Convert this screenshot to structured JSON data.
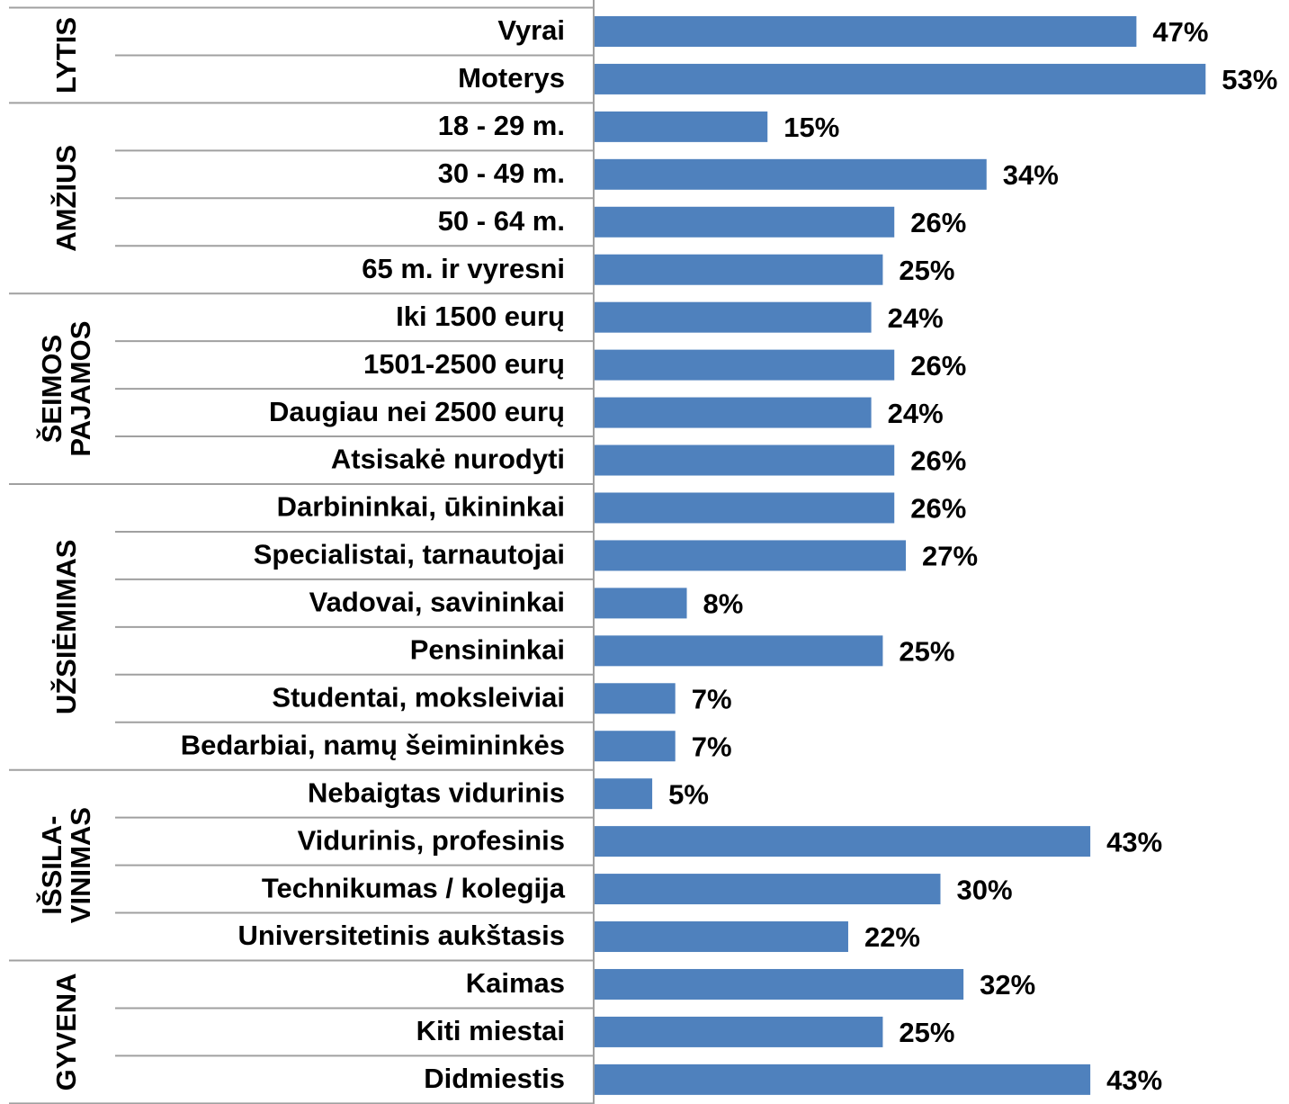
{
  "chart_data": {
    "type": "bar",
    "orientation": "horizontal",
    "color": "#4f81bd",
    "xlim": [
      0,
      60
    ],
    "groups": [
      {
        "name": [
          "LYTIS"
        ],
        "categories": [
          "Vyrai",
          "Moterys"
        ],
        "values": [
          47,
          53
        ],
        "value_labels": [
          "47%",
          "53%"
        ]
      },
      {
        "name": [
          "AMŽIUS"
        ],
        "categories": [
          "18 - 29 m.",
          "30 - 49 m.",
          "50 - 64 m.",
          "65 m. ir vyresni"
        ],
        "values": [
          15,
          34,
          26,
          25
        ],
        "value_labels": [
          "15%",
          "34%",
          "26%",
          "25%"
        ]
      },
      {
        "name": [
          "ŠEIMOS",
          "PAJAMOS"
        ],
        "categories": [
          "Iki 1500 eurų",
          "1501-2500 eurų",
          "Daugiau nei 2500 eurų",
          "Atsisakė nurodyti"
        ],
        "values": [
          24,
          26,
          24,
          26
        ],
        "value_labels": [
          "24%",
          "26%",
          "24%",
          "26%"
        ]
      },
      {
        "name": [
          "UŽSIĖMIMAS"
        ],
        "categories": [
          "Darbininkai, ūkininkai",
          "Specialistai, tarnautojai",
          "Vadovai, savininkai",
          "Pensininkai",
          "Studentai, moksleiviai",
          "Bedarbiai, namų šeimininkės"
        ],
        "values": [
          26,
          27,
          8,
          25,
          7,
          7
        ],
        "value_labels": [
          "26%",
          "27%",
          "8%",
          "25%",
          "7%",
          "7%"
        ]
      },
      {
        "name": [
          "IŠSILA-",
          "VINIMAS"
        ],
        "categories": [
          "Nebaigtas vidurinis",
          "Vidurinis, profesinis",
          "Technikumas / kolegija",
          "Universitetinis aukštasis"
        ],
        "values": [
          5,
          43,
          30,
          22
        ],
        "value_labels": [
          "5%",
          "43%",
          "30%",
          "22%"
        ]
      },
      {
        "name": [
          "GYVENA"
        ],
        "categories": [
          "Kaimas",
          "Kiti miestai",
          "Didmiestis"
        ],
        "values": [
          32,
          25,
          43
        ],
        "value_labels": [
          "32%",
          "25%",
          "43%"
        ]
      }
    ]
  }
}
